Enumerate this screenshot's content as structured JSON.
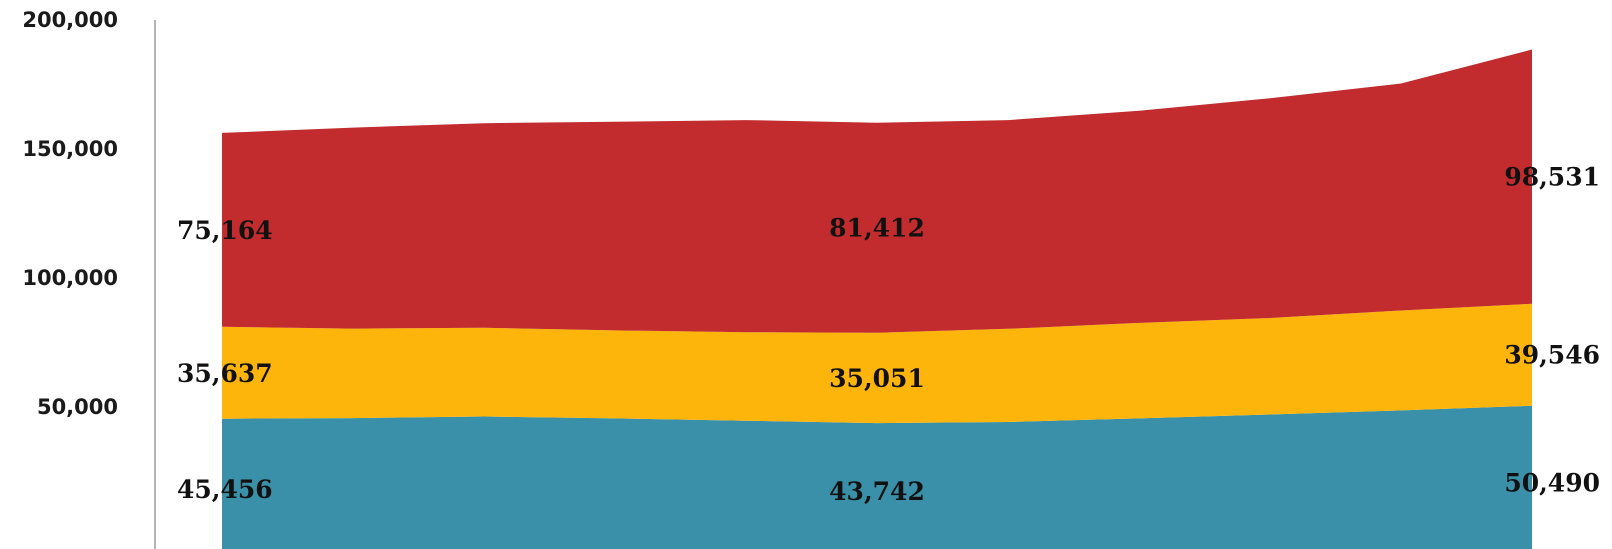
{
  "chart_data": {
    "type": "area",
    "stacked": true,
    "x": [
      1,
      2,
      3,
      4,
      5,
      6,
      7,
      8,
      9,
      10,
      11
    ],
    "ylim": [
      0,
      200000
    ],
    "yticks": [
      50000,
      100000,
      150000,
      200000
    ],
    "ytick_labels": [
      "50,000",
      "100,000",
      "150,000",
      "200,000"
    ],
    "grid": false,
    "legend": "none",
    "series": [
      {
        "color": "#3a90a8",
        "values": [
          45456,
          45700,
          46300,
          45600,
          44700,
          43742,
          44200,
          45600,
          47100,
          48700,
          50490
        ],
        "labels": [
          {
            "index": 0,
            "text": "45,456"
          },
          {
            "index": 5,
            "text": "43,742"
          },
          {
            "index": 10,
            "text": "50,490"
          }
        ]
      },
      {
        "color": "#fdb50c",
        "values": [
          35637,
          34700,
          34400,
          34100,
          34300,
          35051,
          36100,
          37000,
          37400,
          38700,
          39546
        ],
        "labels": [
          {
            "index": 0,
            "text": "35,637"
          },
          {
            "index": 5,
            "text": "35,051"
          },
          {
            "index": 10,
            "text": "39,546"
          }
        ]
      },
      {
        "color": "#c22c2e",
        "values": [
          75164,
          77900,
          79300,
          80900,
          82200,
          81412,
          80900,
          82200,
          85200,
          88000,
          98531
        ],
        "labels": [
          {
            "index": 0,
            "text": "75,164"
          },
          {
            "index": 5,
            "text": "81,412"
          },
          {
            "index": 10,
            "text": "98,531"
          }
        ]
      }
    ]
  }
}
